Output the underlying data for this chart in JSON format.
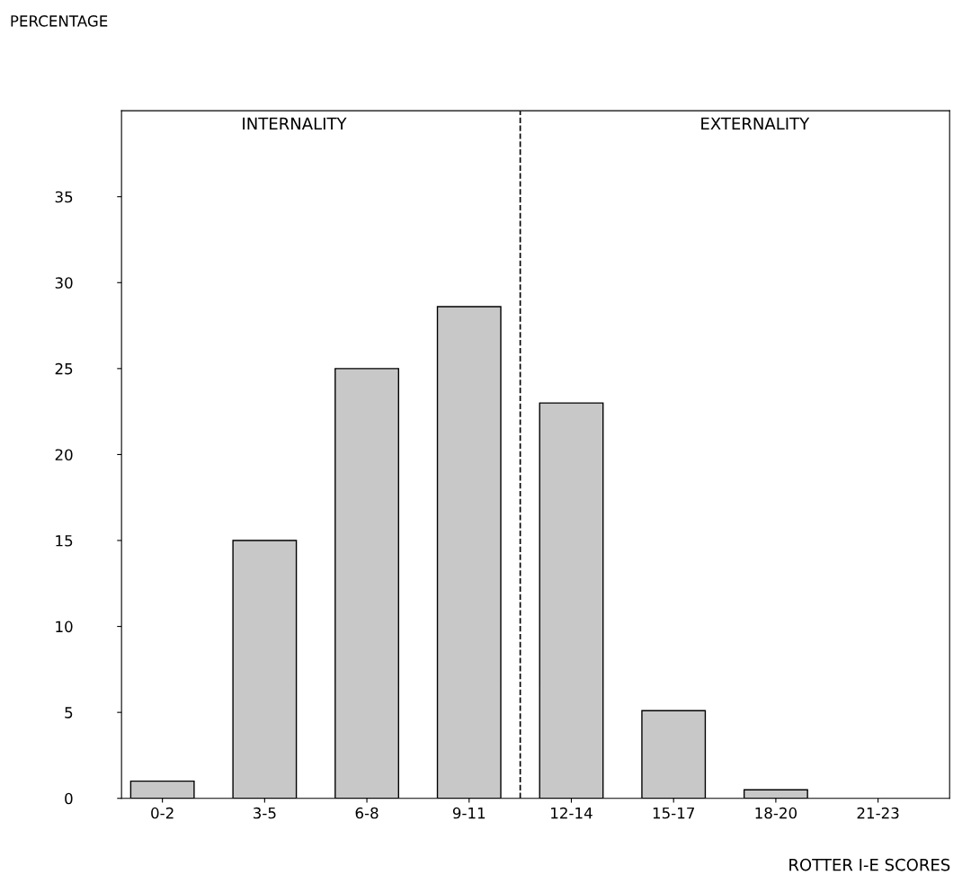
{
  "chart_data": {
    "type": "bar",
    "xlabel": "ROTTER I-E SCORES",
    "categories": [
      "0-2",
      "3-5",
      "6-8",
      "9-11",
      "12-14",
      "15-17",
      "18-20",
      "21-23"
    ],
    "values": [
      1,
      15,
      25,
      28.6,
      23,
      5.1,
      0.5,
      0
    ],
    "color": "#c8c8c8",
    "ylim": [
      0,
      40
    ],
    "yticks": [
      0,
      5,
      10,
      15,
      20,
      25,
      30,
      35
    ],
    "annotations": [
      "PERCENTAGE",
      "INTERNALITY",
      "EXTERNALITY"
    ],
    "grid": false
  }
}
